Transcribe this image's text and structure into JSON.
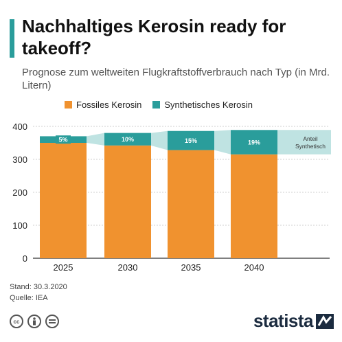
{
  "title": "Nachhaltiges Kerosin ready for takeoff?",
  "subtitle": "Prognose zum weltweiten Flugkraftstoffverbrauch nach Typ (in Mrd. Litern)",
  "legend": {
    "fossil": "Fossiles Kerosin",
    "synthetic": "Synthetisches Kerosin"
  },
  "annotation": {
    "line1": "Anteil",
    "line2": "Synthetisch"
  },
  "footer": {
    "stand": "Stand: 30.3.2020",
    "source": "Quelle: IEA"
  },
  "brand": "statista",
  "cc_icons": [
    "cc-icon",
    "by-icon",
    "nd-icon"
  ],
  "colors": {
    "fossil": "#f0922f",
    "synthetic": "#2a9d9b",
    "band": "#bfe3e2",
    "accent": "#2a9d9b",
    "brand": "#1b2b3f"
  },
  "chart_data": {
    "type": "bar",
    "stacked": true,
    "categories": [
      "2025",
      "2030",
      "2035",
      "2040"
    ],
    "series": [
      {
        "name": "Fossiles Kerosin",
        "values": [
          350,
          342,
          328,
          315
        ]
      },
      {
        "name": "Synthetisches Kerosin",
        "values": [
          20,
          38,
          58,
          74
        ]
      }
    ],
    "share_labels": [
      "5%",
      "10%",
      "15%",
      "19%"
    ],
    "ylim": [
      0,
      400
    ],
    "yticks": [
      0,
      100,
      200,
      300,
      400
    ],
    "grid": true,
    "legend_position": "top"
  }
}
